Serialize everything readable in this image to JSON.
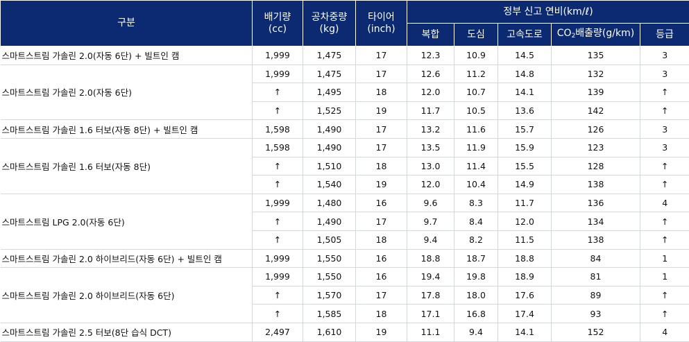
{
  "header": {
    "category": "구분",
    "displacement": "배기량\n(cc)",
    "curb_weight": "공차중량\n(kg)",
    "tire": "타이어\n(inch)",
    "fuel_economy_group": "정부 신고 연비(km/ℓ)",
    "combined": "복합",
    "city": "도심",
    "highway": "고속도로",
    "co2_prefix": "CO",
    "co2_sub": "2",
    "co2_suffix": "배출량(g/km)",
    "grade": "등급"
  },
  "groups": [
    {
      "name": "스마트스트림 가솔린 2.0(자동 6단) + 빌트인 캠",
      "rows": [
        [
          "1,999",
          "1,475",
          "17",
          "12.3",
          "10.9",
          "14.5",
          "135",
          "3"
        ]
      ]
    },
    {
      "name": "스마트스트림 가솔린 2.0(자동 6단)",
      "rows": [
        [
          "1,999",
          "1,475",
          "17",
          "12.6",
          "11.2",
          "14.8",
          "132",
          "3"
        ],
        [
          "↑",
          "1,495",
          "18",
          "12.0",
          "10.7",
          "14.1",
          "139",
          "↑"
        ],
        [
          "↑",
          "1,525",
          "19",
          "11.7",
          "10.5",
          "13.6",
          "142",
          "↑"
        ]
      ]
    },
    {
      "name": "스마트스트림 가솔린 1.6 터보(자동 8단) + 빌트인 캠",
      "rows": [
        [
          "1,598",
          "1,490",
          "17",
          "13.2",
          "11.6",
          "15.7",
          "126",
          "3"
        ]
      ]
    },
    {
      "name": "스마트스트림 가솔린 1.6 터보(자동 8단)",
      "rows": [
        [
          "1,598",
          "1,490",
          "17",
          "13.5",
          "11.9",
          "15.9",
          "123",
          "3"
        ],
        [
          "↑",
          "1,510",
          "18",
          "13.0",
          "11.4",
          "15.5",
          "128",
          "↑"
        ],
        [
          "↑",
          "1,540",
          "19",
          "12.0",
          "10.4",
          "14.9",
          "138",
          "↑"
        ]
      ]
    },
    {
      "name": "스마트스트림 LPG 2.0(자동 6단)",
      "rows": [
        [
          "1,999",
          "1,480",
          "16",
          "9.6",
          "8.3",
          "11.7",
          "136",
          "4"
        ],
        [
          "↑",
          "1,490",
          "17",
          "9.7",
          "8.4",
          "12.0",
          "134",
          "↑"
        ],
        [
          "↑",
          "1,505",
          "18",
          "9.4",
          "8.2",
          "11.5",
          "138",
          "↑"
        ]
      ]
    },
    {
      "name": "스마트스트림 가솔린 2.0 하이브리드(자동 6단) + 빌트인 캠",
      "rows": [
        [
          "1,999",
          "1,550",
          "16",
          "18.8",
          "18.7",
          "18.8",
          "84",
          "1"
        ]
      ]
    },
    {
      "name": "스마트스트림 가솔린 2.0 하이브리드(자동 6단)",
      "rows": [
        [
          "1,999",
          "1,550",
          "16",
          "19.4",
          "19.8",
          "18.9",
          "81",
          "1"
        ],
        [
          "↑",
          "1,570",
          "17",
          "17.8",
          "18.0",
          "17.6",
          "89",
          "↑"
        ],
        [
          "↑",
          "1,585",
          "18",
          "17.1",
          "16.8",
          "17.4",
          "93",
          "↑"
        ]
      ]
    },
    {
      "name": "스마트스트림 가솔린 2.5 터보(8단 습식 DCT)",
      "rows": [
        [
          "2,497",
          "1,610",
          "19",
          "11.1",
          "9.4",
          "14.1",
          "152",
          "4"
        ]
      ]
    }
  ]
}
